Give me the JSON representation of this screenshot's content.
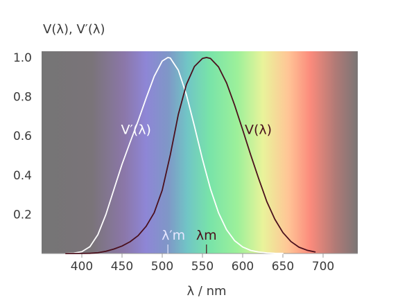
{
  "chart_data": {
    "type": "line",
    "ylabel": "V(λ), V′(λ)",
    "xlabel": "λ / nm",
    "xlim": [
      350,
      740
    ],
    "ylim": [
      0,
      1.02
    ],
    "x_ticks": [
      "400",
      "450",
      "500",
      "550",
      "600",
      "650",
      "700"
    ],
    "y_ticks": [
      "0.2",
      "0.4",
      "0.6",
      "0.8",
      "1.0"
    ],
    "background": "visible spectrum gradient",
    "series": [
      {
        "name": "V′(λ)",
        "color": "#ffffff",
        "peak_nm": 507,
        "x": [
          380,
          390,
          400,
          410,
          420,
          430,
          440,
          450,
          460,
          470,
          480,
          490,
          500,
          507,
          510,
          520,
          530,
          540,
          550,
          560,
          570,
          580,
          590,
          600,
          610,
          620,
          630,
          640,
          650
        ],
        "values": [
          0.0006,
          0.0022,
          0.0093,
          0.0348,
          0.0966,
          0.1998,
          0.3281,
          0.455,
          0.567,
          0.676,
          0.793,
          0.904,
          0.982,
          1.0,
          0.997,
          0.935,
          0.811,
          0.65,
          0.481,
          0.3288,
          0.2076,
          0.1212,
          0.0655,
          0.0332,
          0.0159,
          0.0074,
          0.0033,
          0.0015,
          0.0007
        ]
      },
      {
        "name": "V(λ)",
        "color": "#4a0f1c",
        "peak_nm": 555,
        "x": [
          380,
          390,
          400,
          410,
          420,
          430,
          440,
          450,
          460,
          470,
          480,
          490,
          500,
          510,
          520,
          530,
          540,
          550,
          555,
          560,
          570,
          580,
          590,
          600,
          610,
          620,
          630,
          640,
          650,
          660,
          670,
          680,
          690
        ],
        "values": [
          4e-05,
          0.00012,
          0.0004,
          0.0012,
          0.004,
          0.0116,
          0.023,
          0.038,
          0.06,
          0.091,
          0.139,
          0.208,
          0.323,
          0.503,
          0.71,
          0.862,
          0.954,
          0.995,
          1.0,
          0.995,
          0.952,
          0.87,
          0.757,
          0.631,
          0.503,
          0.381,
          0.265,
          0.175,
          0.107,
          0.061,
          0.032,
          0.017,
          0.0082
        ]
      }
    ],
    "annotations": [
      {
        "text": "V′(λ)",
        "x_nm": 466,
        "y": 0.63,
        "color": "#ffffff"
      },
      {
        "text": "V(λ)",
        "x_nm": 606,
        "y": 0.63,
        "color": "#4a0f1c"
      },
      {
        "text": "λ′m",
        "x_nm": 507,
        "color": "#e6e6ff"
      },
      {
        "text": "λm",
        "x_nm": 555,
        "color": "#4a0f1c"
      }
    ]
  }
}
